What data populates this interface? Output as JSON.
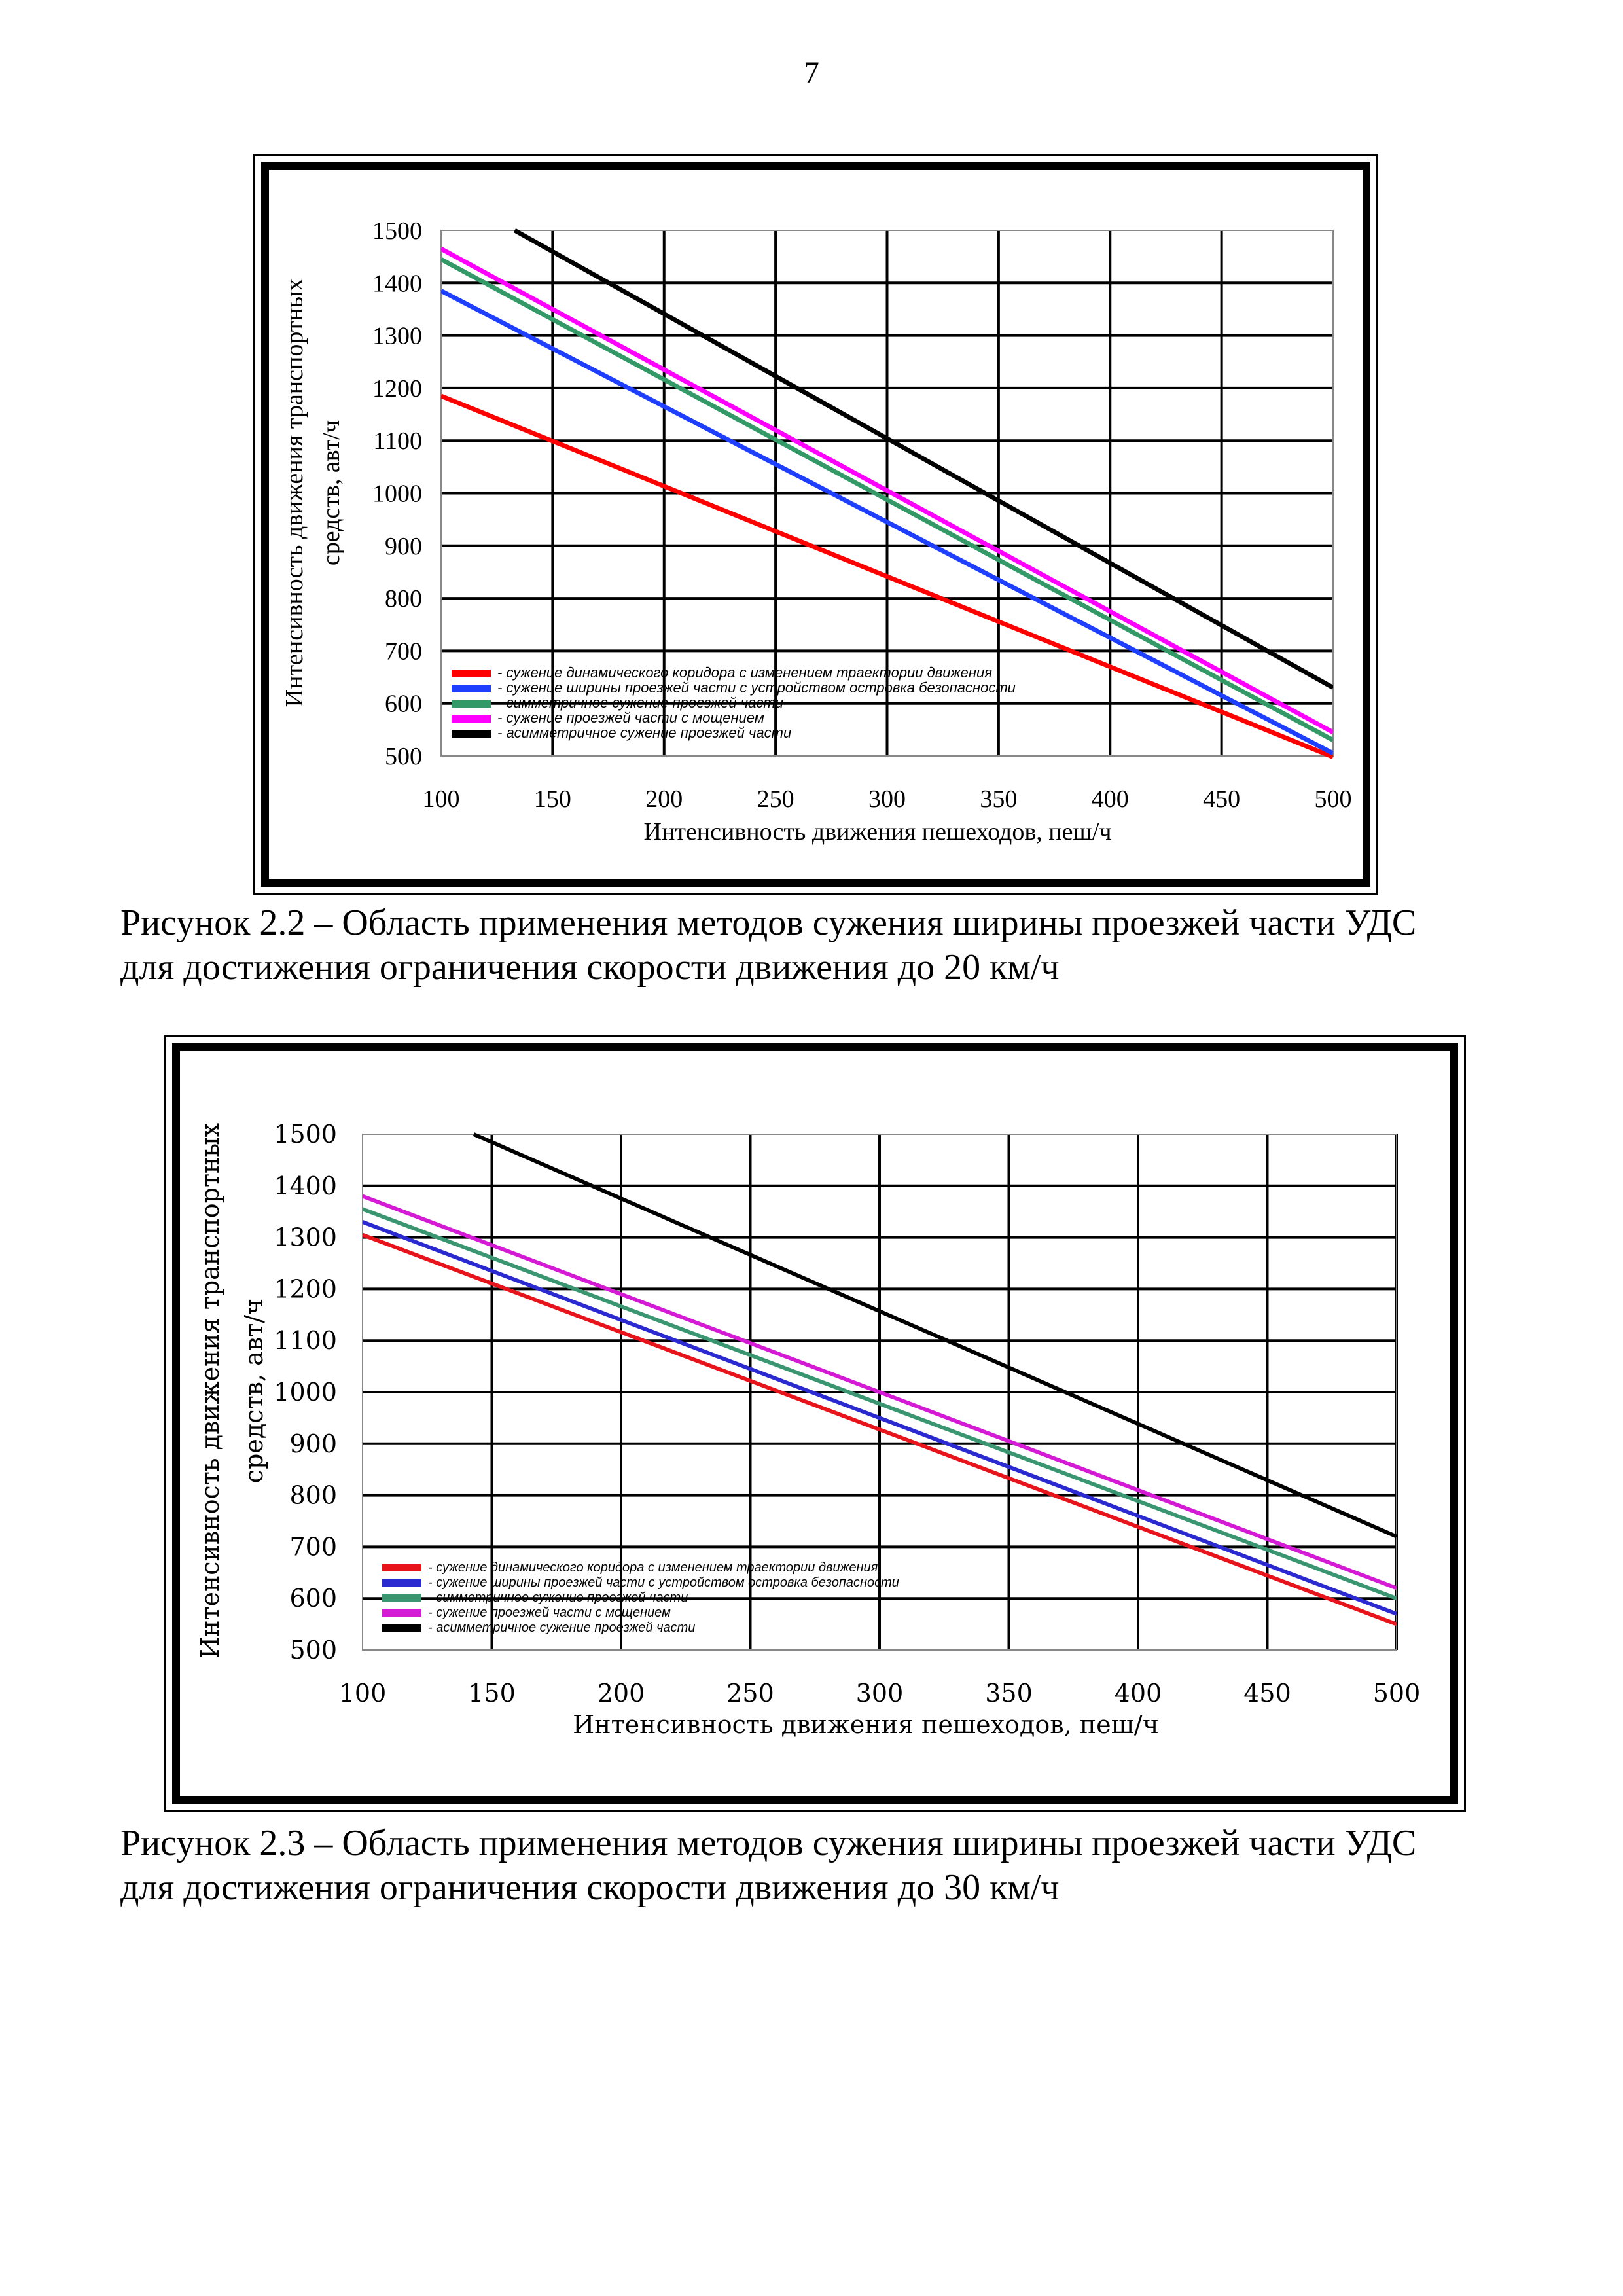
{
  "page_number": "7",
  "figures": [
    {
      "caption_line1": "Рисунок 2.2 – Область применения методов сужения ширины проезжей части УДС",
      "caption_line2": "для достижения ограничения скорости движения до 20 км/ч"
    },
    {
      "caption_line1": "Рисунок 2.3 – Область применения методов сужения ширины проезжей части УДС",
      "caption_line2": "для достижения ограничения скорости движения до 30 км/ч"
    }
  ],
  "chart_data": [
    {
      "type": "line",
      "title": "",
      "xlabel": "Интенсивность движения пешеходов, пеш/ч",
      "ylabel_line1": "Интенсивность движения транспортных",
      "ylabel_line2": "средств, авт/ч",
      "xlim": [
        100,
        500
      ],
      "ylim": [
        500,
        1500
      ],
      "xticks": [
        "100",
        "150",
        "200",
        "250",
        "300",
        "350",
        "400",
        "450",
        "500"
      ],
      "yticks": [
        "500",
        "600",
        "700",
        "800",
        "900",
        "1000",
        "1100",
        "1200",
        "1300",
        "1400",
        "1500"
      ],
      "grid": true,
      "legend_position": "bottom-left inside plot",
      "series": [
        {
          "name": "- сужение динамического коридора с изменением траектории движения",
          "color": "#ff0000",
          "points": [
            [
              100,
              1185
            ],
            [
              500,
              498
            ]
          ]
        },
        {
          "name": "- сужение ширины проезжей части с устройством островка безопасности",
          "color": "#1f3fff",
          "points": [
            [
              100,
              1385
            ],
            [
              500,
              505
            ]
          ]
        },
        {
          "name": "- симметричное сужение проезжей части",
          "color": "#339966",
          "points": [
            [
              100,
              1445
            ],
            [
              500,
              530
            ]
          ]
        },
        {
          "name": "- сужение проезжей части с мощением",
          "color": "#ff00ff",
          "points": [
            [
              100,
              1465
            ],
            [
              500,
              545
            ]
          ]
        },
        {
          "name": "- асимметричное сужение проезжей части",
          "color": "#000000",
          "points": [
            [
              133,
              1500
            ],
            [
              500,
              630
            ]
          ]
        }
      ]
    },
    {
      "type": "line",
      "title": "",
      "xlabel": "Интенсивность движения пешеходов, пеш/ч",
      "ylabel_line1": "Интенсивность движения транспортных",
      "ylabel_line2": "средств, авт/ч",
      "xlim": [
        100,
        500
      ],
      "ylim": [
        500,
        1500
      ],
      "xticks": [
        "100",
        "150",
        "200",
        "250",
        "300",
        "350",
        "400",
        "450",
        "500"
      ],
      "yticks": [
        "500",
        "600",
        "700",
        "800",
        "900",
        "1000",
        "1100",
        "1200",
        "1300",
        "1400",
        "1500"
      ],
      "grid": true,
      "legend_position": "bottom-left inside plot",
      "series": [
        {
          "name": "- сужение динамического коридора с изменением траектории движения",
          "color": "#e8141c",
          "points": [
            [
              100,
              1305
            ],
            [
              500,
              550
            ]
          ]
        },
        {
          "name": "- сужение ширины проезжей части с устройством островка безопасности",
          "color": "#2a2ad0",
          "points": [
            [
              100,
              1330
            ],
            [
              500,
              570
            ]
          ]
        },
        {
          "name": "- симметричное сужение проезжей части",
          "color": "#3a9670",
          "points": [
            [
              100,
              1355
            ],
            [
              500,
              600
            ]
          ]
        },
        {
          "name": "- сужение проезжей части с мощением",
          "color": "#d41ad4",
          "points": [
            [
              100,
              1380
            ],
            [
              500,
              620
            ]
          ]
        },
        {
          "name": "- асимметричное сужение проезжей части",
          "color": "#000000",
          "points": [
            [
              143,
              1500
            ],
            [
              500,
              720
            ]
          ]
        }
      ]
    }
  ]
}
